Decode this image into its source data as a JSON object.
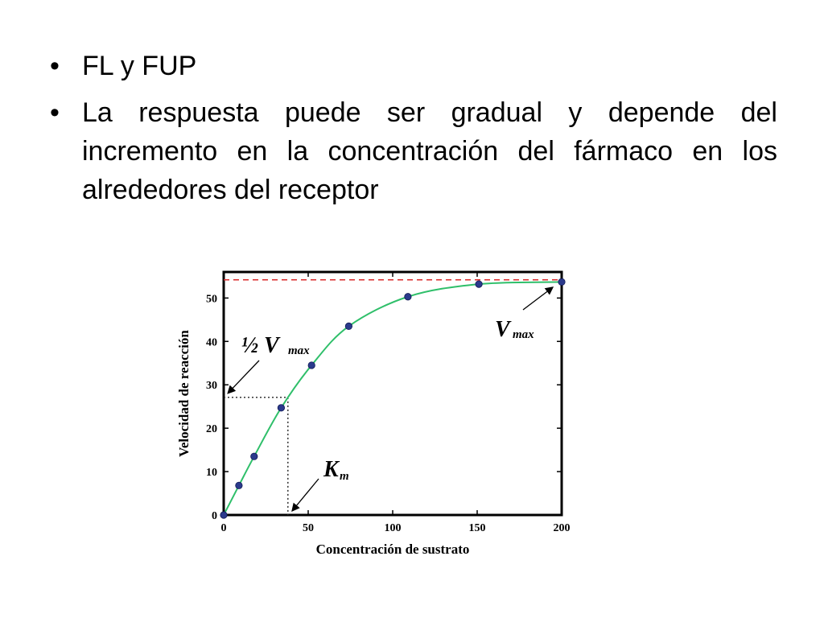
{
  "bullets": [
    {
      "text": "FL y FUP"
    },
    {
      "text": "La respuesta puede ser gradual y depende del incremento en la concentración del fármaco en los alrededores del receptor"
    }
  ],
  "chart_data": {
    "type": "scatter",
    "xlabel": "Concentración de sustrato",
    "ylabel": "Velocidad de reacción",
    "xlim": [
      0,
      200
    ],
    "ylim": [
      0,
      56
    ],
    "x_ticks": [
      0,
      50,
      100,
      150,
      200
    ],
    "y_ticks": [
      0,
      10,
      20,
      30,
      40,
      50
    ],
    "x_tick_labels": [
      "0",
      "50",
      "100",
      "150",
      "200"
    ],
    "y_tick_labels": [
      "0",
      "10",
      "20",
      "30",
      "40",
      "50"
    ],
    "points": [
      {
        "x": 0,
        "y": 0
      },
      {
        "x": 9,
        "y": 6.8
      },
      {
        "x": 18,
        "y": 13.5
      },
      {
        "x": 34,
        "y": 24.7
      },
      {
        "x": 52,
        "y": 34.5
      },
      {
        "x": 74,
        "y": 43.5
      },
      {
        "x": 109,
        "y": 50.3
      },
      {
        "x": 151,
        "y": 53.2
      },
      {
        "x": 200,
        "y": 53.7
      }
    ],
    "vmax": 54.2,
    "half_vmax": 27.1,
    "km": 38,
    "annotations": {
      "vmax_label": "V",
      "vmax_sub": "max",
      "half_label": "½ V",
      "half_sub": "max",
      "km_label": "K",
      "km_sub": "m"
    },
    "colors": {
      "curve": "#2fbf6a",
      "points": "#2b3a8c",
      "vmax_line": "#d9282a",
      "guide": "#222222"
    },
    "grid": false
  }
}
